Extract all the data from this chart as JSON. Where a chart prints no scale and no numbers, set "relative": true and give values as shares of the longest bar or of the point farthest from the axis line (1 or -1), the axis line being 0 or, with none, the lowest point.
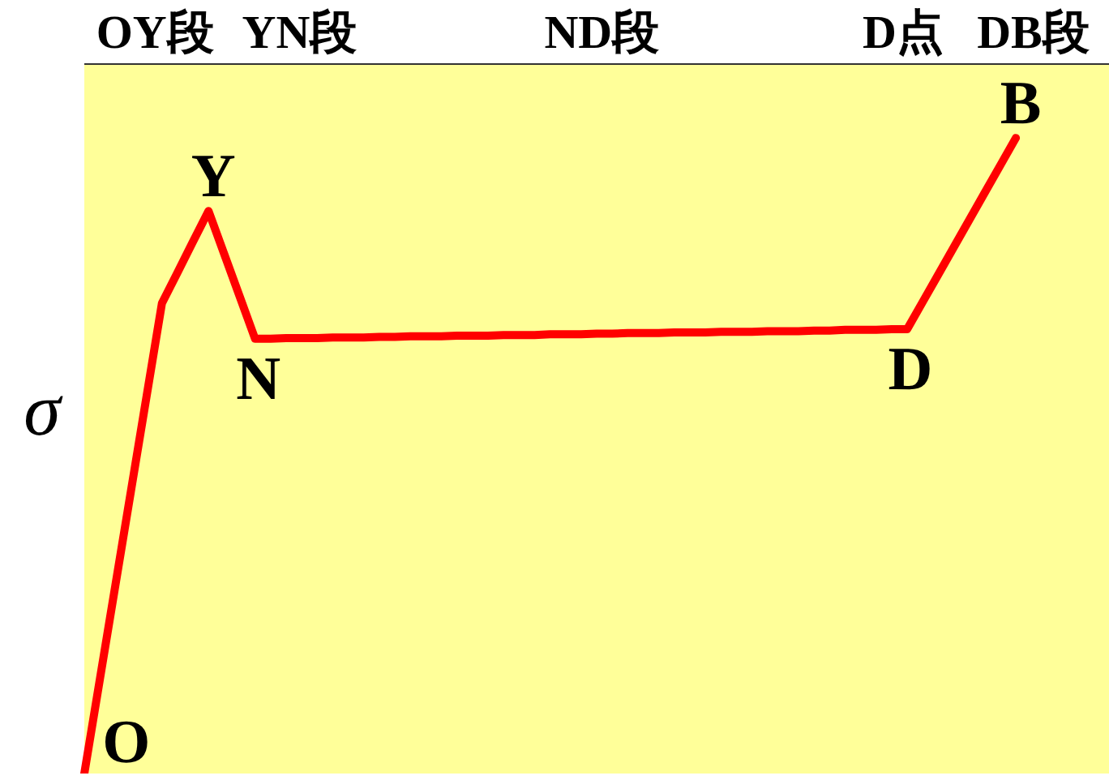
{
  "chart_data": {
    "type": "line",
    "relative": true,
    "ylabel": "σ",
    "marker": "none",
    "categories": [
      null,
      null,
      null,
      null,
      null,
      null,
      null,
      null,
      null,
      null,
      null,
      null,
      null,
      null,
      null,
      null,
      null,
      null,
      null,
      null,
      null,
      null,
      null,
      null,
      null,
      null,
      null,
      null,
      null,
      null,
      null,
      null,
      null,
      null,
      null,
      null,
      null,
      null,
      null,
      null,
      null,
      null,
      null,
      null,
      null,
      null,
      null,
      null,
      null,
      null,
      null,
      null,
      null,
      null,
      null,
      null,
      null,
      null,
      null,
      null,
      null,
      null,
      null,
      null,
      null,
      null,
      null
    ],
    "series": [
      {
        "color": "#ff0000",
        "values": [
          0,
          0.148,
          0.296,
          0.444,
          0.592,
          0.74,
          0.788,
          0.837,
          0.885,
          0.818,
          0.751,
          0.684,
          0.684,
          0.685,
          0.685,
          0.685,
          0.686,
          0.686,
          0.686,
          0.687,
          0.687,
          0.688,
          0.688,
          0.688,
          0.689,
          0.689,
          0.689,
          0.69,
          0.69,
          0.69,
          0.691,
          0.691,
          0.691,
          0.692,
          0.692,
          0.693,
          0.693,
          0.693,
          0.694,
          0.694,
          0.694,
          0.695,
          0.695,
          0.695,
          0.696,
          0.696,
          0.696,
          0.697,
          0.697,
          0.698,
          0.698,
          0.698,
          0.699,
          0.699,
          0.742,
          0.785,
          0.828,
          0.871,
          0.914,
          0.957,
          1,
          null,
          null,
          null,
          null,
          null,
          null
        ]
      }
    ],
    "annotations": [
      "OY段",
      "YN段",
      "ND段",
      "D点",
      "DB段",
      "O",
      {
        "text": "Y",
        "y": 0.885
      },
      {
        "text": "N",
        "y": 0.684
      },
      {
        "text": "D",
        "y": 0.699
      },
      {
        "text": "B",
        "y": 1
      }
    ]
  }
}
